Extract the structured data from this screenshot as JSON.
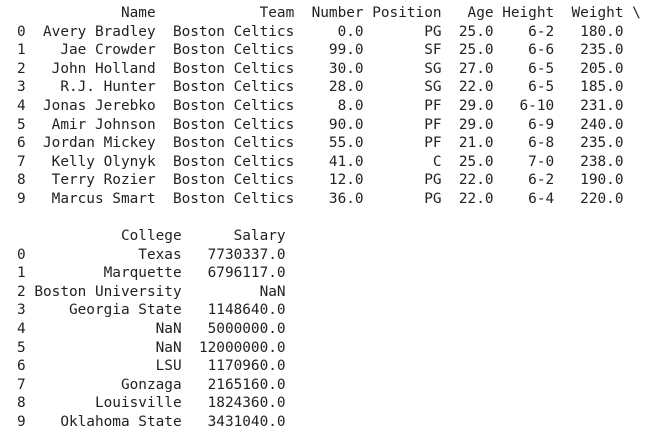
{
  "table1": {
    "columns": [
      "Name",
      "Team",
      "Number",
      "Position",
      "Age",
      "Height",
      "Weight"
    ],
    "continuation": "\\",
    "rows": [
      {
        "index": "0",
        "cells": [
          "Avery Bradley",
          "Boston Celtics",
          "0.0",
          "PG",
          "25.0",
          "6-2",
          "180.0"
        ]
      },
      {
        "index": "1",
        "cells": [
          "Jae Crowder",
          "Boston Celtics",
          "99.0",
          "SF",
          "25.0",
          "6-6",
          "235.0"
        ]
      },
      {
        "index": "2",
        "cells": [
          "John Holland",
          "Boston Celtics",
          "30.0",
          "SG",
          "27.0",
          "6-5",
          "205.0"
        ]
      },
      {
        "index": "3",
        "cells": [
          "R.J. Hunter",
          "Boston Celtics",
          "28.0",
          "SG",
          "22.0",
          "6-5",
          "185.0"
        ]
      },
      {
        "index": "4",
        "cells": [
          "Jonas Jerebko",
          "Boston Celtics",
          "8.0",
          "PF",
          "29.0",
          "6-10",
          "231.0"
        ]
      },
      {
        "index": "5",
        "cells": [
          "Amir Johnson",
          "Boston Celtics",
          "90.0",
          "PF",
          "29.0",
          "6-9",
          "240.0"
        ]
      },
      {
        "index": "6",
        "cells": [
          "Jordan Mickey",
          "Boston Celtics",
          "55.0",
          "PF",
          "21.0",
          "6-8",
          "235.0"
        ]
      },
      {
        "index": "7",
        "cells": [
          "Kelly Olynyk",
          "Boston Celtics",
          "41.0",
          "C",
          "25.0",
          "7-0",
          "238.0"
        ]
      },
      {
        "index": "8",
        "cells": [
          "Terry Rozier",
          "Boston Celtics",
          "12.0",
          "PG",
          "22.0",
          "6-2",
          "190.0"
        ]
      },
      {
        "index": "9",
        "cells": [
          "Marcus Smart",
          "Boston Celtics",
          "36.0",
          "PG",
          "22.0",
          "6-4",
          "220.0"
        ]
      }
    ]
  },
  "table2": {
    "columns": [
      "College",
      "Salary"
    ],
    "rows": [
      {
        "index": "0",
        "cells": [
          "Texas",
          "7730337.0"
        ]
      },
      {
        "index": "1",
        "cells": [
          "Marquette",
          "6796117.0"
        ]
      },
      {
        "index": "2",
        "cells": [
          "Boston University",
          "NaN"
        ]
      },
      {
        "index": "3",
        "cells": [
          "Georgia State",
          "1148640.0"
        ]
      },
      {
        "index": "4",
        "cells": [
          "NaN",
          "5000000.0"
        ]
      },
      {
        "index": "5",
        "cells": [
          "NaN",
          "12000000.0"
        ]
      },
      {
        "index": "6",
        "cells": [
          "LSU",
          "1170960.0"
        ]
      },
      {
        "index": "7",
        "cells": [
          "Gonzaga",
          "2165160.0"
        ]
      },
      {
        "index": "8",
        "cells": [
          "Louisville",
          "1824360.0"
        ]
      },
      {
        "index": "9",
        "cells": [
          "Oklahoma State",
          "3431040.0"
        ]
      }
    ]
  }
}
